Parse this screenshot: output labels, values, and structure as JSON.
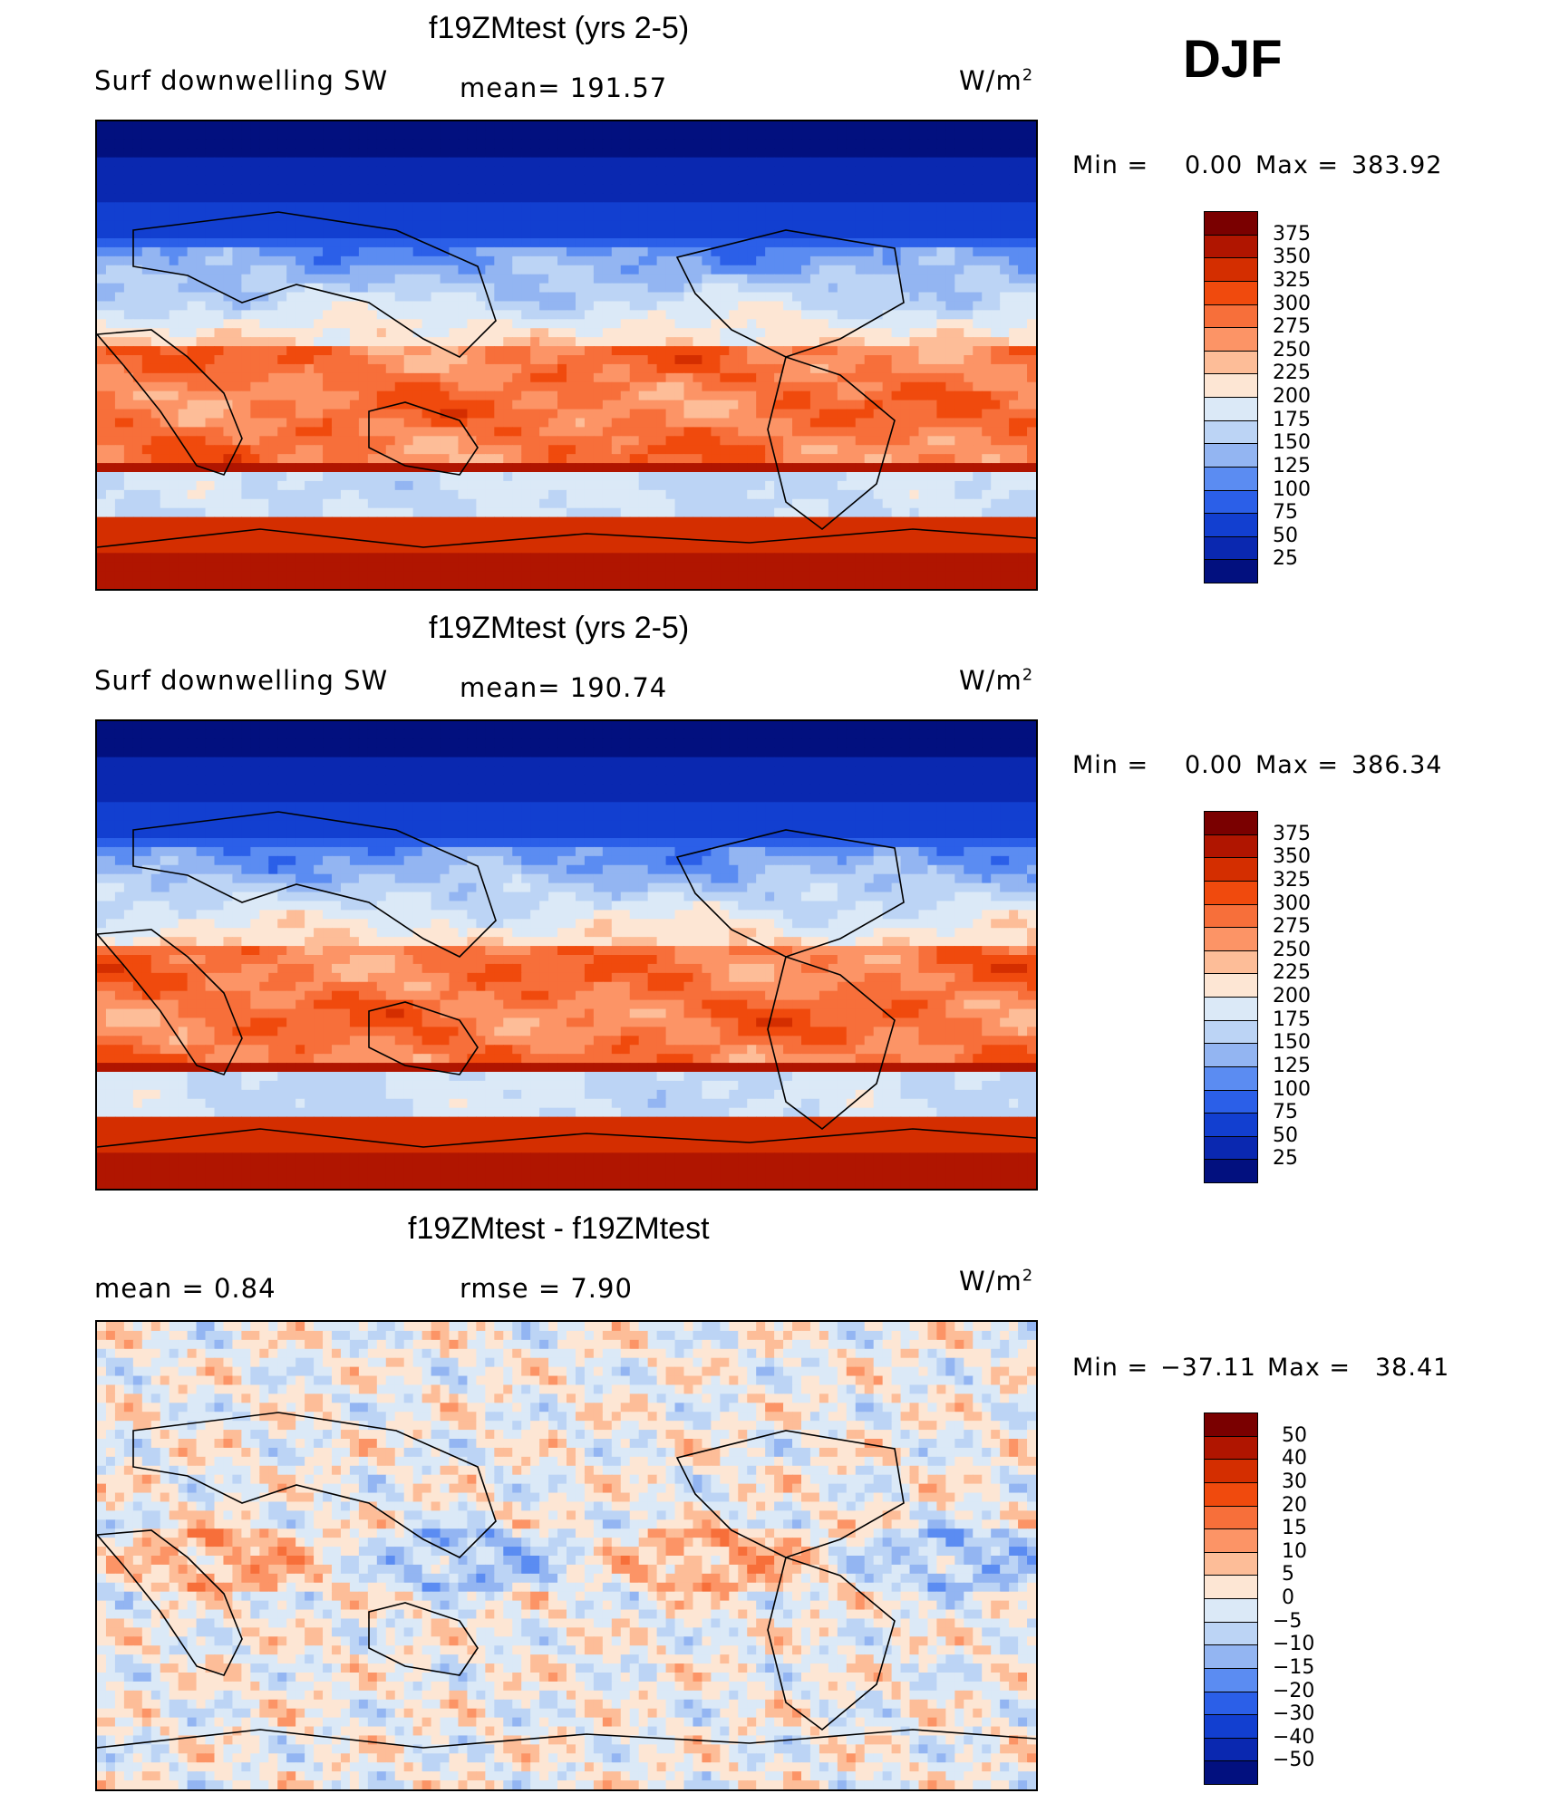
{
  "season": "DJF",
  "panels": [
    {
      "title": "f19ZMtest (yrs 2-5)",
      "left_label": "Surf  downwelling SW",
      "center_label": "mean=  191.57",
      "units_base": "W/m",
      "units_exp": "2",
      "min_label": "Min  =",
      "min_value": "0.00",
      "max_label": "Max  =",
      "max_value": "383.92",
      "kind": "abs"
    },
    {
      "title": "f19ZMtest (yrs 2-5)",
      "left_label": "Surf  downwelling SW",
      "center_label": "mean=  190.74",
      "units_base": "W/m",
      "units_exp": "2",
      "min_label": "Min  =",
      "min_value": "0.00",
      "max_label": "Max  =",
      "max_value": "386.34",
      "kind": "abs"
    },
    {
      "title": "f19ZMtest - f19ZMtest",
      "left_label": "mean  =     0.84",
      "center_label": "rmse  =     7.90",
      "units_base": "W/m",
      "units_exp": "2",
      "min_label": "Min  =",
      "min_value": "−37.11",
      "max_label": "Max  =",
      "max_value": "38.41",
      "kind": "diff"
    }
  ],
  "chart_data": [
    {
      "type": "heatmap",
      "title": "f19ZMtest (yrs 2-5)",
      "variable": "Surf downwelling SW",
      "units": "W/m2",
      "mean": 191.57,
      "min": 0.0,
      "max": 383.92,
      "colorbar_levels": [
        "375",
        "350",
        "325",
        "300",
        "275",
        "250",
        "225",
        "200",
        "175",
        "150",
        "125",
        "100",
        "75",
        "50",
        "25"
      ],
      "colorbar_colors": [
        "#7a0000",
        "#b01500",
        "#d42e00",
        "#f04a0d",
        "#f76f3a",
        "#fc9466",
        "#fdbd98",
        "#fde6d4",
        "#dbe9f7",
        "#bcd4f5",
        "#93b5f2",
        "#5b8cf2",
        "#2b5fe8",
        "#123fd0",
        "#0a28b0",
        "#02107f"
      ]
    },
    {
      "type": "heatmap",
      "title": "f19ZMtest (yrs 2-5)",
      "variable": "Surf downwelling SW",
      "units": "W/m2",
      "mean": 190.74,
      "min": 0.0,
      "max": 386.34,
      "colorbar_levels": [
        "375",
        "350",
        "325",
        "300",
        "275",
        "250",
        "225",
        "200",
        "175",
        "150",
        "125",
        "100",
        "75",
        "50",
        "25"
      ],
      "colorbar_colors": [
        "#7a0000",
        "#b01500",
        "#d42e00",
        "#f04a0d",
        "#f76f3a",
        "#fc9466",
        "#fdbd98",
        "#fde6d4",
        "#dbe9f7",
        "#bcd4f5",
        "#93b5f2",
        "#5b8cf2",
        "#2b5fe8",
        "#123fd0",
        "#0a28b0",
        "#02107f"
      ]
    },
    {
      "type": "heatmap",
      "title": "f19ZMtest - f19ZMtest",
      "units": "W/m2",
      "mean": 0.84,
      "rmse": 7.9,
      "min": -37.11,
      "max": 38.41,
      "colorbar_levels": [
        "50",
        "40",
        "30",
        "20",
        "15",
        "10",
        "5",
        "0",
        "−5",
        "−10",
        "−15",
        "−20",
        "−30",
        "−40",
        "−50"
      ],
      "colorbar_colors": [
        "#7a0000",
        "#b01500",
        "#d42e00",
        "#f04a0d",
        "#f76f3a",
        "#fc9466",
        "#fdbd98",
        "#fde6d4",
        "#dbe9f7",
        "#bcd4f5",
        "#93b5f2",
        "#5b8cf2",
        "#2b5fe8",
        "#123fd0",
        "#0a28b0",
        "#02107f"
      ]
    }
  ]
}
